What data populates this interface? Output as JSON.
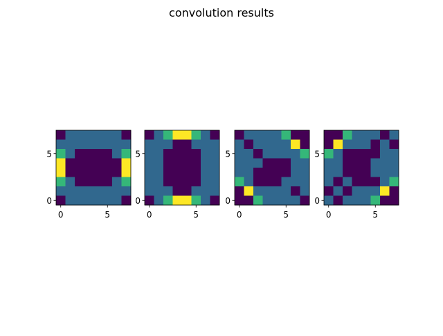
{
  "figure": {
    "title": "convolution results"
  },
  "colormap": {
    "name": "viridis",
    "levels": [
      "#440154",
      "#31688e",
      "#35b779",
      "#fde725"
    ]
  },
  "chart_data": [
    {
      "type": "heatmap",
      "xticks": [
        0,
        5
      ],
      "yticks": [
        0,
        5
      ],
      "xlim": [
        -0.5,
        7.5
      ],
      "ylim": [
        7.5,
        -0.5
      ],
      "values": [
        [
          0,
          1,
          1,
          1,
          1,
          1,
          1,
          0
        ],
        [
          1,
          1,
          1,
          1,
          1,
          1,
          1,
          1
        ],
        [
          2,
          1,
          0,
          0,
          0,
          0,
          1,
          2
        ],
        [
          3,
          0,
          0,
          0,
          0,
          0,
          0,
          3
        ],
        [
          3,
          0,
          0,
          0,
          0,
          0,
          0,
          3
        ],
        [
          2,
          1,
          0,
          0,
          0,
          0,
          1,
          2
        ],
        [
          1,
          1,
          1,
          1,
          1,
          1,
          1,
          1
        ],
        [
          0,
          1,
          1,
          1,
          1,
          1,
          1,
          0
        ]
      ]
    },
    {
      "type": "heatmap",
      "xticks": [
        0,
        5
      ],
      "yticks": [
        0,
        5
      ],
      "xlim": [
        -0.5,
        7.5
      ],
      "ylim": [
        7.5,
        -0.5
      ],
      "values": [
        [
          0,
          1,
          2,
          3,
          3,
          2,
          1,
          0
        ],
        [
          1,
          1,
          1,
          0,
          0,
          1,
          1,
          1
        ],
        [
          1,
          1,
          0,
          0,
          0,
          0,
          1,
          1
        ],
        [
          1,
          1,
          0,
          0,
          0,
          0,
          1,
          1
        ],
        [
          1,
          1,
          0,
          0,
          0,
          0,
          1,
          1
        ],
        [
          1,
          1,
          0,
          0,
          0,
          0,
          1,
          1
        ],
        [
          1,
          1,
          1,
          0,
          0,
          1,
          1,
          1
        ],
        [
          0,
          1,
          2,
          3,
          3,
          2,
          1,
          0
        ]
      ]
    },
    {
      "type": "heatmap",
      "xticks": [
        0,
        5
      ],
      "yticks": [
        0,
        5
      ],
      "xlim": [
        -0.5,
        7.5
      ],
      "ylim": [
        7.5,
        -0.5
      ],
      "values": [
        [
          0,
          1,
          1,
          1,
          1,
          2,
          0,
          0
        ],
        [
          1,
          0,
          1,
          1,
          1,
          1,
          3,
          0
        ],
        [
          1,
          1,
          0,
          1,
          1,
          1,
          1,
          2
        ],
        [
          1,
          1,
          1,
          0,
          0,
          0,
          1,
          1
        ],
        [
          1,
          1,
          0,
          0,
          0,
          0,
          1,
          1
        ],
        [
          2,
          1,
          0,
          0,
          0,
          1,
          1,
          1
        ],
        [
          0,
          3,
          1,
          1,
          1,
          1,
          0,
          1
        ],
        [
          0,
          0,
          2,
          1,
          1,
          1,
          1,
          0
        ]
      ]
    },
    {
      "type": "heatmap",
      "xticks": [
        0,
        5
      ],
      "yticks": [
        0,
        5
      ],
      "xlim": [
        -0.5,
        7.5
      ],
      "ylim": [
        7.5,
        -0.5
      ],
      "values": [
        [
          0,
          0,
          2,
          1,
          1,
          1,
          0,
          1
        ],
        [
          0,
          3,
          1,
          1,
          1,
          0,
          1,
          0
        ],
        [
          2,
          1,
          0,
          0,
          0,
          0,
          1,
          1
        ],
        [
          1,
          1,
          0,
          0,
          0,
          1,
          1,
          1
        ],
        [
          1,
          1,
          0,
          0,
          0,
          1,
          1,
          1
        ],
        [
          1,
          0,
          1,
          0,
          0,
          0,
          1,
          2
        ],
        [
          0,
          1,
          0,
          1,
          1,
          1,
          3,
          0
        ],
        [
          1,
          0,
          1,
          1,
          1,
          2,
          0,
          0
        ]
      ]
    }
  ]
}
